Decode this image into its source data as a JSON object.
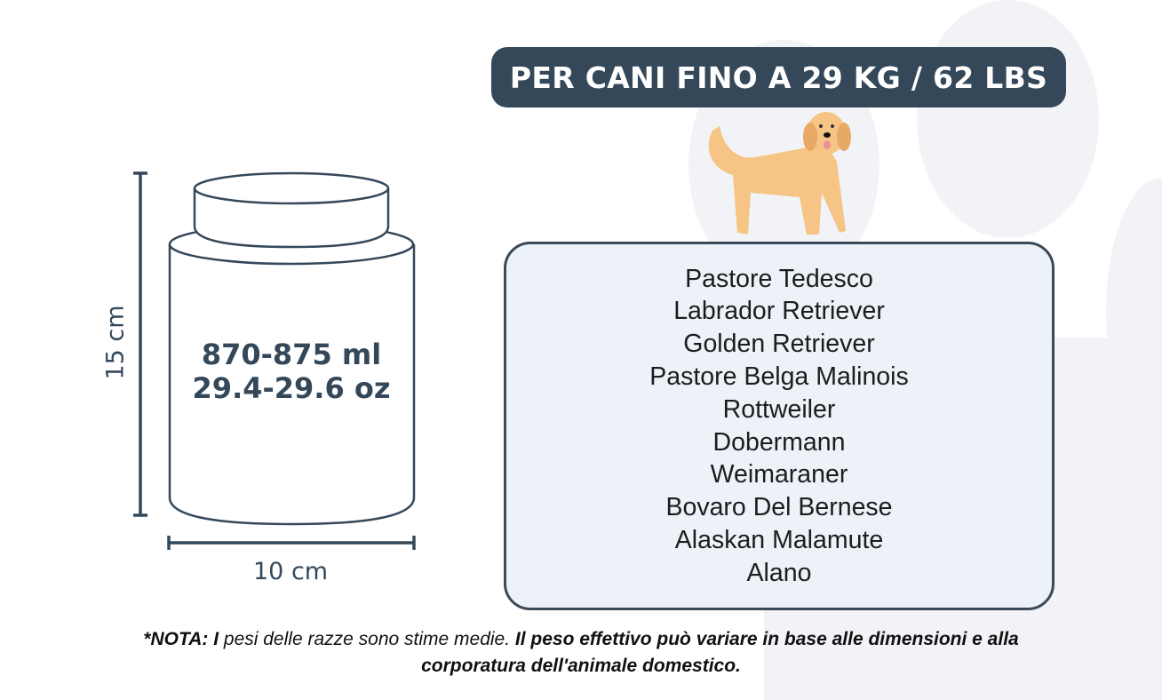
{
  "header": {
    "title": "PER CANI FINO A 29 KG / 62 LBS"
  },
  "jar": {
    "volume_ml": "870-875 ml",
    "volume_oz": "29.4-29.6 oz",
    "height": "15 cm",
    "width": "10 cm"
  },
  "breeds": [
    "Pastore Tedesco",
    "Labrador Retriever",
    "Golden Retriever",
    "Pastore Belga Malinois",
    "Rottweiler",
    "Dobermann",
    "Weimaraner",
    "Bovaro Del Bernese",
    "Alaskan Malamute",
    "Alano"
  ],
  "note": {
    "bold1": "*NOTA: I",
    "italic": " pesi delle razze sono stime medie.",
    "bold2": " Il peso effettivo può variare in base alle dimensioni e alla corporatura dell'animale domestico."
  },
  "colors": {
    "dark": "#34485a",
    "box_bg": "#edf2f9",
    "dog": "#f6c585"
  }
}
